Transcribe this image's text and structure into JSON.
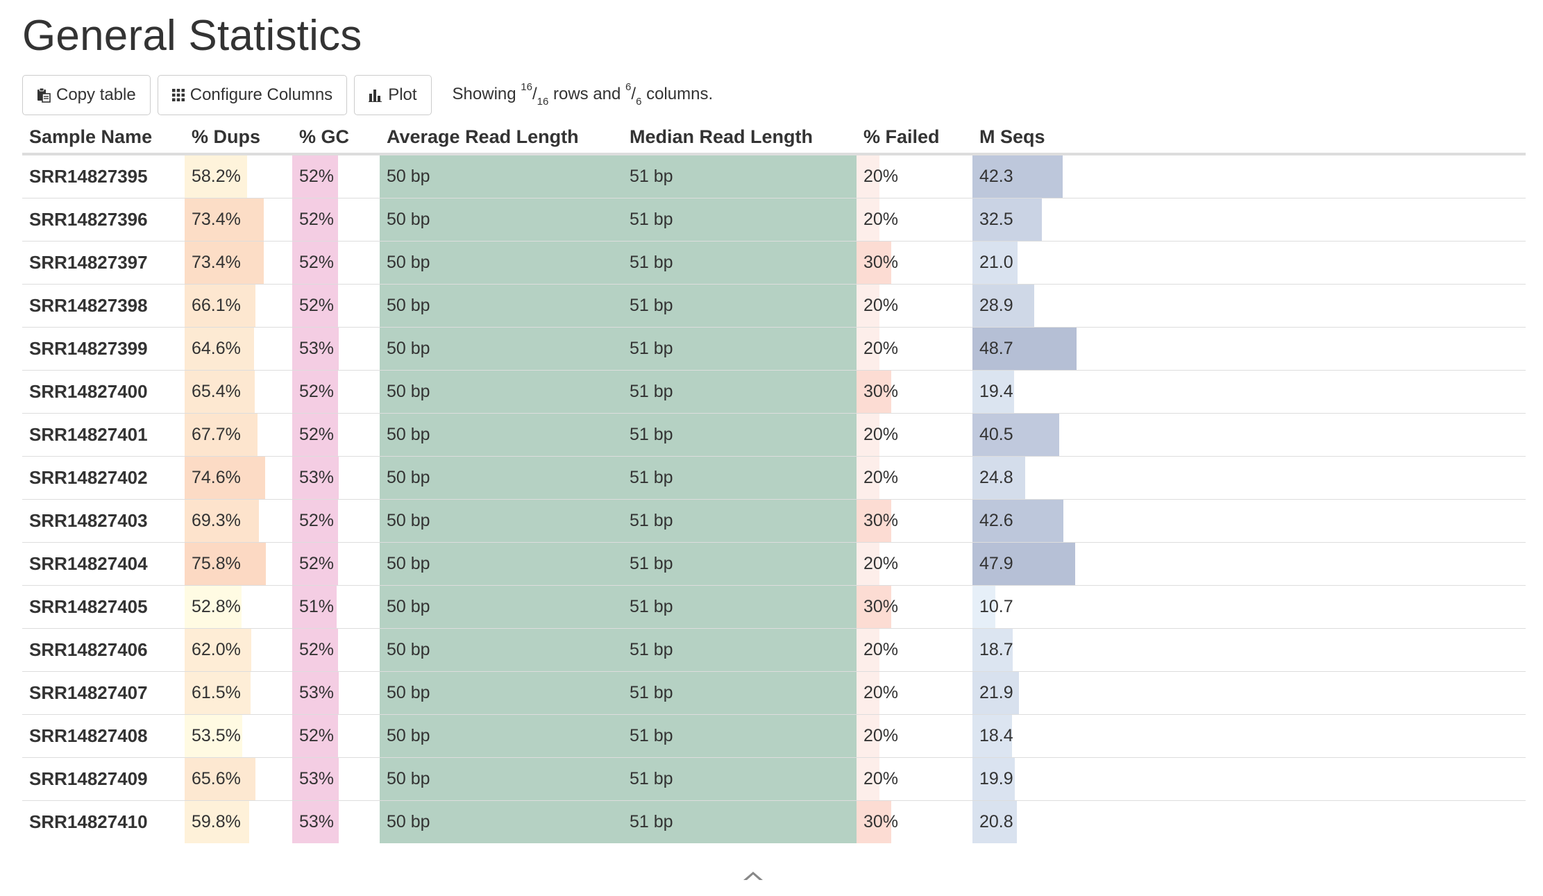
{
  "page": {
    "title": "General Statistics"
  },
  "toolbar": {
    "copy_label": "Copy table",
    "configure_label": "Configure Columns",
    "plot_label": "Plot",
    "showing": {
      "prefix": "Showing ",
      "rows_shown": "16",
      "rows_total": "16",
      "middle": " rows and ",
      "cols_shown": "6",
      "cols_total": "6",
      "suffix": " columns."
    }
  },
  "table": {
    "headers": [
      "Sample Name",
      "% Dups",
      "% GC",
      "Average Read Length",
      "Median Read Length",
      "% Failed",
      "M Seqs"
    ],
    "colors": {
      "dups_low": "#fffbe3",
      "dups_high": "#fcd9c3",
      "gc": "#f4cde3",
      "read_length": "#b5d1c3",
      "failed_low": "#fdeeea",
      "failed_high": "#fcdcd3",
      "seqs_low": "#e6eff8",
      "seqs_high": "#b5bfd5"
    },
    "rows": [
      {
        "name": "SRR14827395",
        "dups": "58.2%",
        "dups_v": 58.2,
        "gc": "52%",
        "gc_v": 52,
        "avg_len": "50 bp",
        "avg_v": 50,
        "med_len": "51 bp",
        "med_v": 51,
        "failed": "20%",
        "failed_v": 20,
        "seqs": "42.3",
        "seqs_v": 42.3
      },
      {
        "name": "SRR14827396",
        "dups": "73.4%",
        "dups_v": 73.4,
        "gc": "52%",
        "gc_v": 52,
        "avg_len": "50 bp",
        "avg_v": 50,
        "med_len": "51 bp",
        "med_v": 51,
        "failed": "20%",
        "failed_v": 20,
        "seqs": "32.5",
        "seqs_v": 32.5
      },
      {
        "name": "SRR14827397",
        "dups": "73.4%",
        "dups_v": 73.4,
        "gc": "52%",
        "gc_v": 52,
        "avg_len": "50 bp",
        "avg_v": 50,
        "med_len": "51 bp",
        "med_v": 51,
        "failed": "30%",
        "failed_v": 30,
        "seqs": "21.0",
        "seqs_v": 21.0
      },
      {
        "name": "SRR14827398",
        "dups": "66.1%",
        "dups_v": 66.1,
        "gc": "52%",
        "gc_v": 52,
        "avg_len": "50 bp",
        "avg_v": 50,
        "med_len": "51 bp",
        "med_v": 51,
        "failed": "20%",
        "failed_v": 20,
        "seqs": "28.9",
        "seqs_v": 28.9
      },
      {
        "name": "SRR14827399",
        "dups": "64.6%",
        "dups_v": 64.6,
        "gc": "53%",
        "gc_v": 53,
        "avg_len": "50 bp",
        "avg_v": 50,
        "med_len": "51 bp",
        "med_v": 51,
        "failed": "20%",
        "failed_v": 20,
        "seqs": "48.7",
        "seqs_v": 48.7
      },
      {
        "name": "SRR14827400",
        "dups": "65.4%",
        "dups_v": 65.4,
        "gc": "52%",
        "gc_v": 52,
        "avg_len": "50 bp",
        "avg_v": 50,
        "med_len": "51 bp",
        "med_v": 51,
        "failed": "30%",
        "failed_v": 30,
        "seqs": "19.4",
        "seqs_v": 19.4
      },
      {
        "name": "SRR14827401",
        "dups": "67.7%",
        "dups_v": 67.7,
        "gc": "52%",
        "gc_v": 52,
        "avg_len": "50 bp",
        "avg_v": 50,
        "med_len": "51 bp",
        "med_v": 51,
        "failed": "20%",
        "failed_v": 20,
        "seqs": "40.5",
        "seqs_v": 40.5
      },
      {
        "name": "SRR14827402",
        "dups": "74.6%",
        "dups_v": 74.6,
        "gc": "53%",
        "gc_v": 53,
        "avg_len": "50 bp",
        "avg_v": 50,
        "med_len": "51 bp",
        "med_v": 51,
        "failed": "20%",
        "failed_v": 20,
        "seqs": "24.8",
        "seqs_v": 24.8
      },
      {
        "name": "SRR14827403",
        "dups": "69.3%",
        "dups_v": 69.3,
        "gc": "52%",
        "gc_v": 52,
        "avg_len": "50 bp",
        "avg_v": 50,
        "med_len": "51 bp",
        "med_v": 51,
        "failed": "30%",
        "failed_v": 30,
        "seqs": "42.6",
        "seqs_v": 42.6
      },
      {
        "name": "SRR14827404",
        "dups": "75.8%",
        "dups_v": 75.8,
        "gc": "52%",
        "gc_v": 52,
        "avg_len": "50 bp",
        "avg_v": 50,
        "med_len": "51 bp",
        "med_v": 51,
        "failed": "20%",
        "failed_v": 20,
        "seqs": "47.9",
        "seqs_v": 47.9
      },
      {
        "name": "SRR14827405",
        "dups": "52.8%",
        "dups_v": 52.8,
        "gc": "51%",
        "gc_v": 51,
        "avg_len": "50 bp",
        "avg_v": 50,
        "med_len": "51 bp",
        "med_v": 51,
        "failed": "30%",
        "failed_v": 30,
        "seqs": "10.7",
        "seqs_v": 10.7
      },
      {
        "name": "SRR14827406",
        "dups": "62.0%",
        "dups_v": 62.0,
        "gc": "52%",
        "gc_v": 52,
        "avg_len": "50 bp",
        "avg_v": 50,
        "med_len": "51 bp",
        "med_v": 51,
        "failed": "20%",
        "failed_v": 20,
        "seqs": "18.7",
        "seqs_v": 18.7
      },
      {
        "name": "SRR14827407",
        "dups": "61.5%",
        "dups_v": 61.5,
        "gc": "53%",
        "gc_v": 53,
        "avg_len": "50 bp",
        "avg_v": 50,
        "med_len": "51 bp",
        "med_v": 51,
        "failed": "20%",
        "failed_v": 20,
        "seqs": "21.9",
        "seqs_v": 21.9
      },
      {
        "name": "SRR14827408",
        "dups": "53.5%",
        "dups_v": 53.5,
        "gc": "52%",
        "gc_v": 52,
        "avg_len": "50 bp",
        "avg_v": 50,
        "med_len": "51 bp",
        "med_v": 51,
        "failed": "20%",
        "failed_v": 20,
        "seqs": "18.4",
        "seqs_v": 18.4
      },
      {
        "name": "SRR14827409",
        "dups": "65.6%",
        "dups_v": 65.6,
        "gc": "53%",
        "gc_v": 53,
        "avg_len": "50 bp",
        "avg_v": 50,
        "med_len": "51 bp",
        "med_v": 51,
        "failed": "20%",
        "failed_v": 20,
        "seqs": "19.9",
        "seqs_v": 19.9
      },
      {
        "name": "SRR14827410",
        "dups": "59.8%",
        "dups_v": 59.8,
        "gc": "53%",
        "gc_v": 53,
        "avg_len": "50 bp",
        "avg_v": 50,
        "med_len": "51 bp",
        "med_v": 51,
        "failed": "30%",
        "failed_v": 30,
        "seqs": "20.8",
        "seqs_v": 20.8
      }
    ]
  }
}
